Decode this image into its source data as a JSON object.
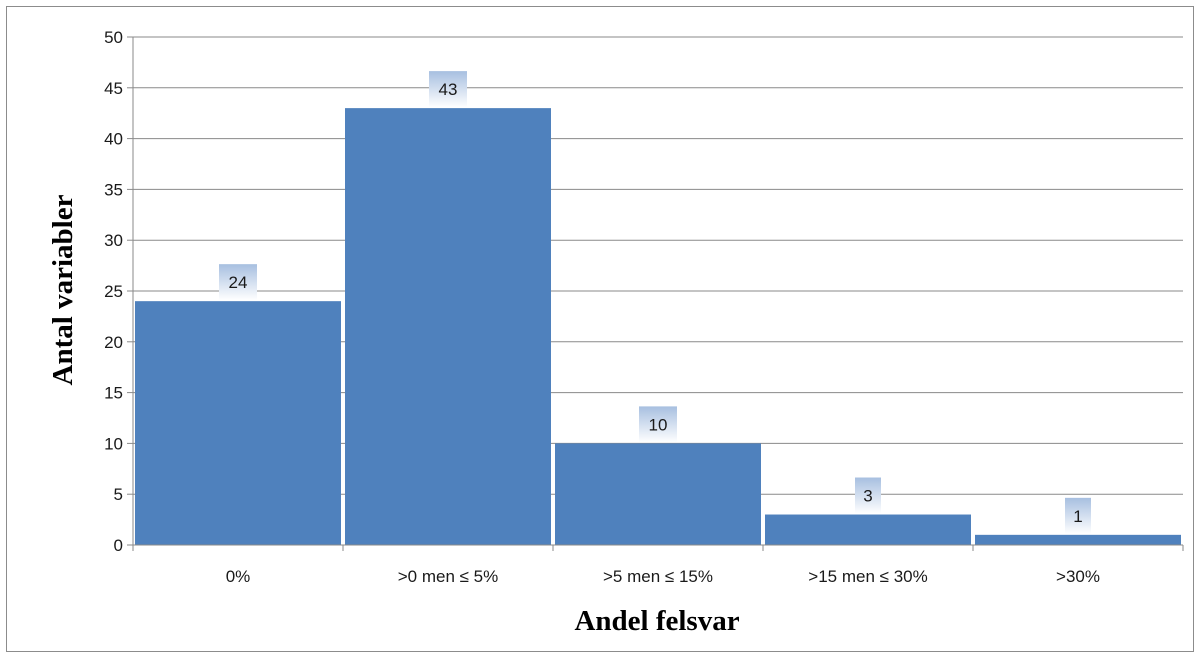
{
  "chart_data": {
    "type": "bar",
    "title": "",
    "xlabel": "Andel felsvar",
    "ylabel": "Antal variabler",
    "categories": [
      "0%",
      ">0 men ≤ 5%",
      ">5 men ≤ 15%",
      ">15 men ≤ 30%",
      ">30%"
    ],
    "values": [
      24,
      43,
      10,
      3,
      1
    ],
    "ylim": [
      0,
      50
    ],
    "yticks": [
      "0",
      "5",
      "10",
      "15",
      "20",
      "25",
      "30",
      "35",
      "40",
      "45",
      "50"
    ],
    "grid": true,
    "legend": "none",
    "data_labels": true,
    "colors": {
      "bar": "#4f81bd",
      "grid": "#8a8a8a",
      "axis": "#8a8a8a",
      "label_bg_top": "#a7bfe0",
      "label_bg_bottom": "#ffffff"
    }
  }
}
